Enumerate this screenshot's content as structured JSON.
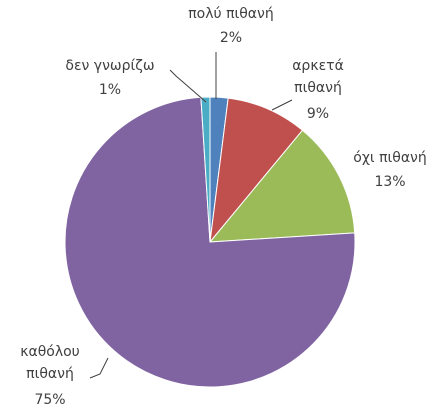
{
  "chart_data": {
    "type": "pie",
    "categories": [
      "πολύ πιθανή",
      "αρκετά πιθανή",
      "όχι πιθανή",
      "καθόλου πιθανή",
      "δεν γνωρίζω"
    ],
    "values": [
      2,
      9,
      13,
      75,
      1
    ],
    "value_labels": [
      "2%",
      "9%",
      "13%",
      "75%",
      "1%"
    ],
    "colors": [
      "#4f81bd",
      "#c0504d",
      "#9bbb59",
      "#8064a2",
      "#4bacc6"
    ]
  }
}
